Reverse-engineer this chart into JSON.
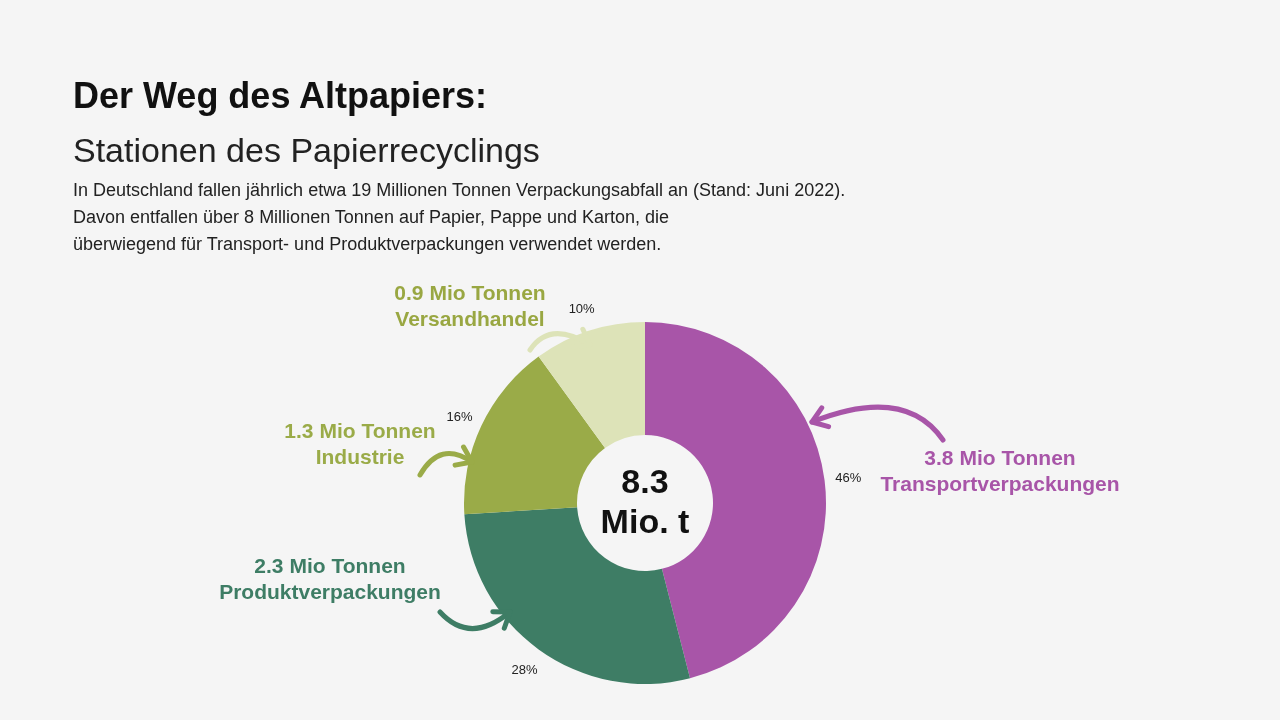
{
  "chart_data": {
    "type": "donut",
    "title": "Der Weg des Altpapiers:",
    "subtitle": "Stationen des Papierrecyclings",
    "annotations": [
      "In Deutschland fallen jährlich etwa 19 Millionen Tonnen Verpackungsabfall an (Stand: Juni 2022).",
      "Davon entfallen über 8 Millionen Tonnen auf Papier, Pappe und Karton, die",
      "überwiegend für Transport- und Produktverpackungen verwendet werden.",
      "8.3\nMio. t"
    ],
    "categories": [
      "3.8 Mio Tonnen\nTransportverpackungen",
      "2.3 Mio Tonnen\nProduktverpackungen",
      "1.3 Mio Tonnen\nIndustrie",
      "0.9 Mio Tonnen\nVersandhandel"
    ],
    "values": [
      46,
      28,
      16,
      10
    ],
    "colors": [
      "#a855a8",
      "#3e7d65",
      "#9aab48",
      "#dde3b8"
    ],
    "value_labels": [
      "46%",
      "28%",
      "16%",
      "10%"
    ]
  }
}
